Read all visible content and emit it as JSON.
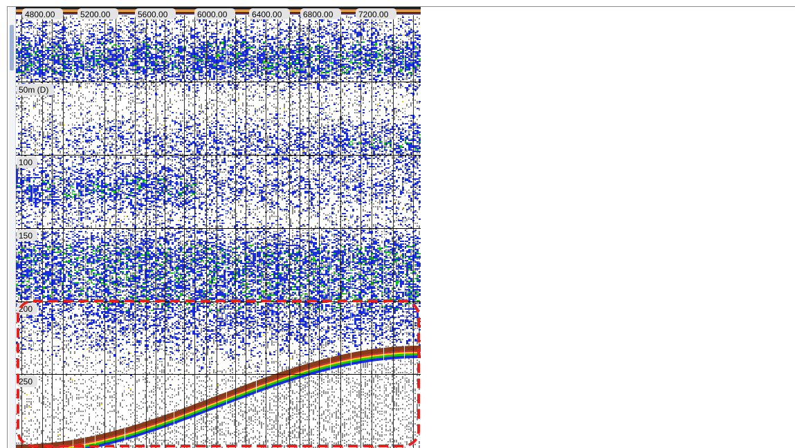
{
  "echogram": {
    "time_axis_labels": [
      "4800.00",
      "5200.00",
      "5600.00",
      "6000.00",
      "6400.00",
      "6800.00",
      "7200.00"
    ],
    "depth_axis_labels": [
      "50m (D)",
      "100",
      "150",
      "200",
      "250"
    ],
    "colors": {
      "background": "#ffffff",
      "noise": "#8c8c8c",
      "weak_echo": "#1a2ee0",
      "medium_echo": "#14c814",
      "strong_echo": "#ffd400",
      "seabed": "#8b3a1a",
      "highlight": "#e8201c"
    },
    "annotation": {
      "type": "dashed-rounded-rectangle",
      "color": "#e8201c",
      "meaning": "seabed region highlighted"
    }
  }
}
